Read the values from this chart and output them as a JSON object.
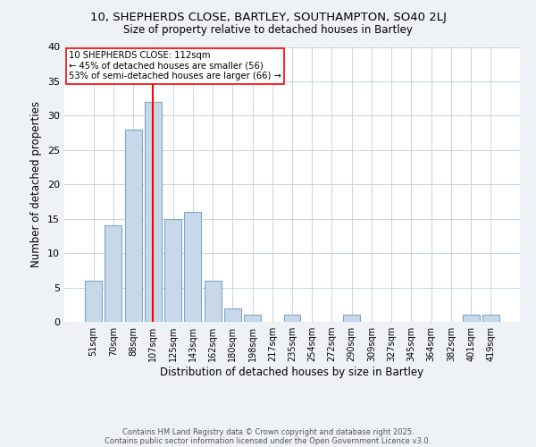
{
  "title_line1": "10, SHEPHERDS CLOSE, BARTLEY, SOUTHAMPTON, SO40 2LJ",
  "title_line2": "Size of property relative to detached houses in Bartley",
  "xlabel": "Distribution of detached houses by size in Bartley",
  "ylabel": "Number of detached properties",
  "categories": [
    "51sqm",
    "70sqm",
    "88sqm",
    "107sqm",
    "125sqm",
    "143sqm",
    "162sqm",
    "180sqm",
    "198sqm",
    "217sqm",
    "235sqm",
    "254sqm",
    "272sqm",
    "290sqm",
    "309sqm",
    "327sqm",
    "345sqm",
    "364sqm",
    "382sqm",
    "401sqm",
    "419sqm"
  ],
  "values": [
    6,
    14,
    28,
    32,
    15,
    16,
    6,
    2,
    1,
    0,
    1,
    0,
    0,
    1,
    0,
    0,
    0,
    0,
    0,
    1,
    1
  ],
  "bar_color": "#c8d8e8",
  "bar_edge_color": "#7aa8cc",
  "vline_x_index": 3,
  "vline_color": "red",
  "annotation_title": "10 SHEPHERDS CLOSE: 112sqm",
  "annotation_line2": "← 45% of detached houses are smaller (56)",
  "annotation_line3": "53% of semi-detached houses are larger (66) →",
  "annotation_box_color": "white",
  "annotation_box_edge": "red",
  "ylim": [
    0,
    40
  ],
  "yticks": [
    0,
    5,
    10,
    15,
    20,
    25,
    30,
    35,
    40
  ],
  "footnote1": "Contains HM Land Registry data © Crown copyright and database right 2025.",
  "footnote2": "Contains public sector information licensed under the Open Government Licence v3.0.",
  "background_color": "#eef2f7",
  "plot_background_color": "white",
  "grid_color": "#c8d4e0"
}
